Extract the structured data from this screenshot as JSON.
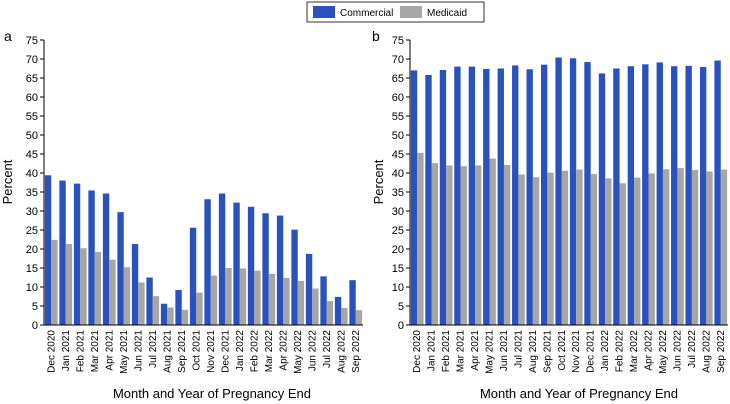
{
  "legend": {
    "items": [
      {
        "label": "Commercial",
        "color": "#2a52be"
      },
      {
        "label": "Medicaid",
        "color": "#a6a6a6"
      }
    ]
  },
  "chart_data": [
    {
      "type": "bar",
      "panel_label": "a",
      "title": "",
      "xlabel": "Month and Year of Pregnancy End",
      "ylabel": "Percent",
      "ylim": [
        0,
        75
      ],
      "yticks": [
        0,
        5,
        10,
        15,
        20,
        25,
        30,
        35,
        40,
        45,
        50,
        55,
        60,
        65,
        70,
        75
      ],
      "grid": false,
      "categories": [
        "Dec 2020",
        "Jan 2021",
        "Feb 2021",
        "Mar 2021",
        "Apr 2021",
        "May 2021",
        "Jun 2021",
        "Jul 2021",
        "Aug 2021",
        "Sep 2021",
        "Oct 2021",
        "Nov 2021",
        "Dec 2021",
        "Jan 2022",
        "Feb 2022",
        "Mar 2022",
        "Apr 2022",
        "May 2022",
        "Jun 2022",
        "Jul 2022",
        "Aug 2022",
        "Sep 2022"
      ],
      "series": [
        {
          "name": "Commercial",
          "color": "#2a52be",
          "values": [
            39.4,
            38.0,
            37.2,
            35.4,
            34.6,
            29.7,
            21.3,
            12.5,
            5.6,
            9.2,
            25.6,
            33.1,
            34.6,
            32.2,
            31.1,
            29.4,
            28.8,
            25.1,
            18.7,
            12.8,
            7.4,
            11.8
          ]
        },
        {
          "name": "Medicaid",
          "color": "#a6a6a6",
          "values": [
            22.4,
            21.3,
            20.2,
            19.2,
            17.2,
            15.2,
            11.2,
            7.6,
            4.6,
            4.0,
            8.5,
            13.0,
            15.0,
            14.9,
            14.3,
            13.5,
            12.4,
            11.6,
            9.6,
            6.3,
            4.5,
            3.9
          ]
        }
      ]
    },
    {
      "type": "bar",
      "panel_label": "b",
      "title": "",
      "xlabel": "Month and Year of Pregnancy End",
      "ylabel": "Percent",
      "ylim": [
        0,
        75
      ],
      "yticks": [
        0,
        5,
        10,
        15,
        20,
        25,
        30,
        35,
        40,
        45,
        50,
        55,
        60,
        65,
        70,
        75
      ],
      "grid": false,
      "categories": [
        "Dec 2020",
        "Jan 2021",
        "Feb 2021",
        "Mar 2021",
        "Apr 2021",
        "May 2021",
        "Jun 2021",
        "Jul 2021",
        "Aug 2021",
        "Sep 2021",
        "Oct 2021",
        "Nov 2021",
        "Dec 2021",
        "Jan 2022",
        "Feb 2022",
        "Mar 2022",
        "Apr 2022",
        "May 2022",
        "Jun 2022",
        "Jul 2022",
        "Aug 2022",
        "Sep 2022"
      ],
      "series": [
        {
          "name": "Commercial",
          "color": "#2a52be",
          "values": [
            67.0,
            65.8,
            67.1,
            68.0,
            68.0,
            67.4,
            67.5,
            68.3,
            67.3,
            68.5,
            70.4,
            70.2,
            69.2,
            66.2,
            67.5,
            68.1,
            68.6,
            69.1,
            68.1,
            68.2,
            67.9,
            69.6
          ]
        },
        {
          "name": "Medicaid",
          "color": "#a6a6a6",
          "values": [
            45.3,
            42.6,
            42.0,
            41.8,
            42.0,
            43.8,
            42.1,
            39.6,
            38.9,
            40.1,
            40.6,
            40.9,
            39.7,
            38.6,
            37.3,
            38.8,
            39.9,
            41.0,
            41.3,
            40.8,
            40.4,
            40.9
          ]
        }
      ]
    }
  ]
}
